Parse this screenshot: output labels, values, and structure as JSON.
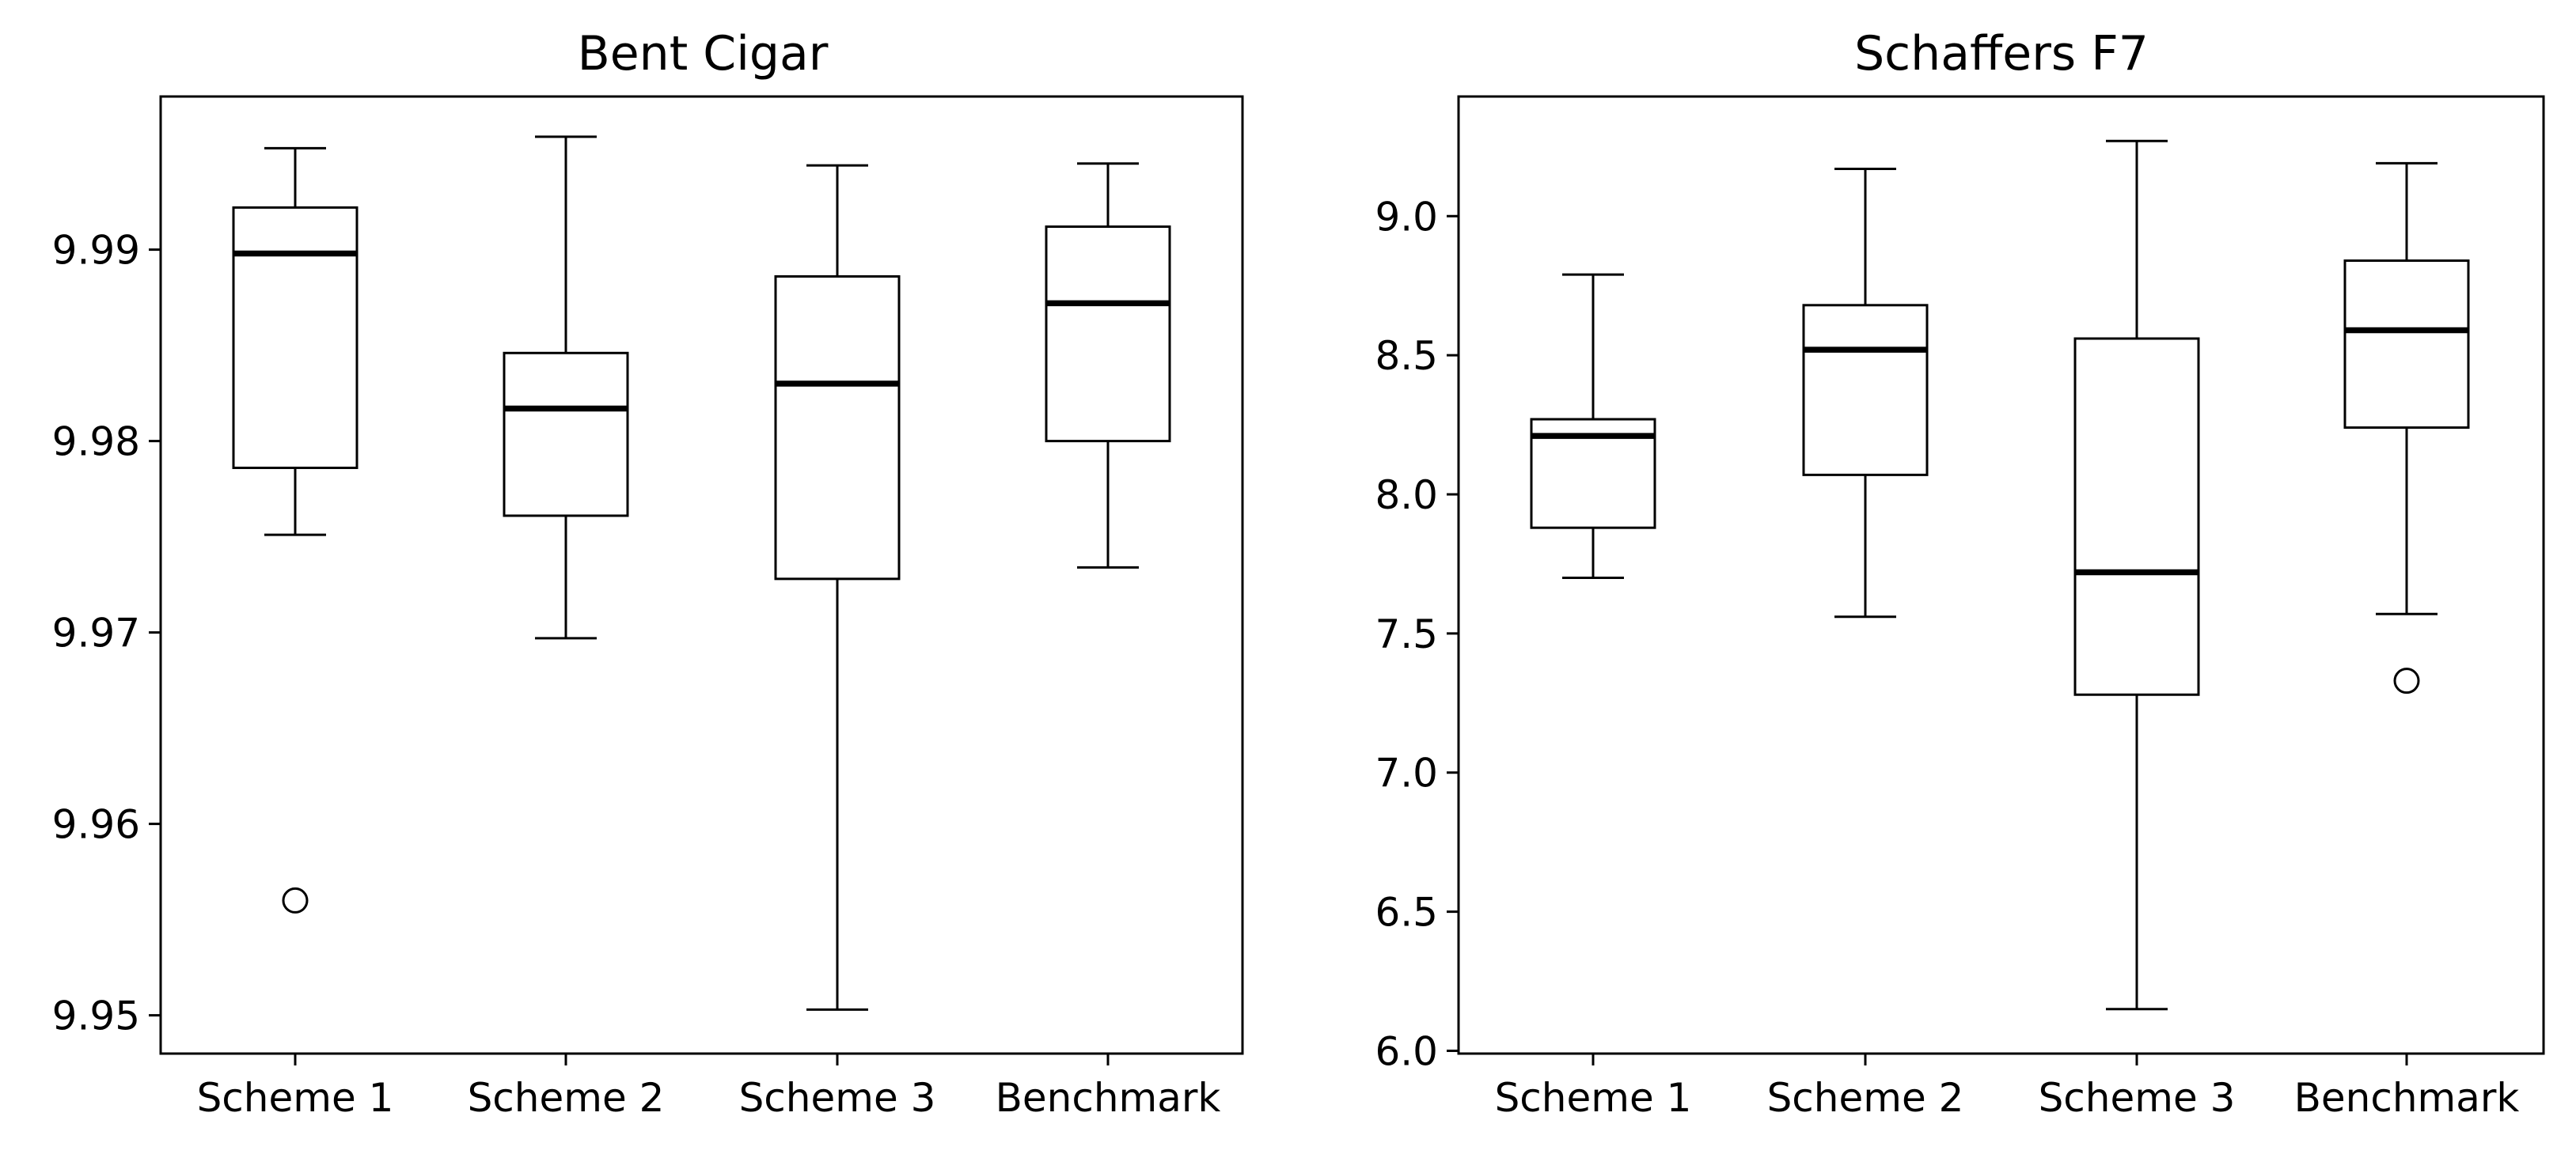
{
  "chart_data": [
    {
      "type": "box",
      "title": "Bent Cigar",
      "xlabel": "",
      "ylabel": "",
      "categories": [
        "Scheme 1",
        "Scheme 2",
        "Scheme 3",
        "Benchmark"
      ],
      "ylim": [
        9.948,
        9.998
      ],
      "yticks": [
        9.95,
        9.96,
        9.97,
        9.98,
        9.99
      ],
      "ytick_labels": [
        "9.95",
        "9.96",
        "9.97",
        "9.98",
        "9.99"
      ],
      "boxes": [
        {
          "whislo": 9.9751,
          "q1": 9.9786,
          "med": 9.9898,
          "q3": 9.9922,
          "whishi": 9.9953,
          "fliers": [
            9.956
          ]
        },
        {
          "whislo": 9.9697,
          "q1": 9.9761,
          "med": 9.9817,
          "q3": 9.9846,
          "whishi": 9.9959,
          "fliers": []
        },
        {
          "whislo": 9.9503,
          "q1": 9.9728,
          "med": 9.983,
          "q3": 9.9886,
          "whishi": 9.9944,
          "fliers": []
        },
        {
          "whislo": 9.9734,
          "q1": 9.98,
          "med": 9.9872,
          "q3": 9.9912,
          "whishi": 9.9945,
          "fliers": []
        }
      ],
      "grid": false,
      "legend": "none"
    },
    {
      "type": "box",
      "title": "Schaffers F7",
      "xlabel": "",
      "ylabel": "",
      "categories": [
        "Scheme 1",
        "Scheme 2",
        "Scheme 3",
        "Benchmark"
      ],
      "ylim": [
        5.99,
        9.43
      ],
      "yticks": [
        6.0,
        6.5,
        7.0,
        7.5,
        8.0,
        8.5,
        9.0
      ],
      "ytick_labels": [
        "6.0",
        "6.5",
        "7.0",
        "7.5",
        "8.0",
        "8.5",
        "9.0"
      ],
      "boxes": [
        {
          "whislo": 7.7,
          "q1": 7.88,
          "med": 8.21,
          "q3": 8.27,
          "whishi": 8.79,
          "fliers": []
        },
        {
          "whislo": 7.56,
          "q1": 8.07,
          "med": 8.52,
          "q3": 8.68,
          "whishi": 9.17,
          "fliers": []
        },
        {
          "whislo": 6.15,
          "q1": 7.28,
          "med": 7.72,
          "q3": 8.56,
          "whishi": 9.27,
          "fliers": []
        },
        {
          "whislo": 7.57,
          "q1": 8.24,
          "med": 8.59,
          "q3": 8.84,
          "whishi": 9.19,
          "fliers": [
            7.33
          ]
        }
      ],
      "grid": false,
      "legend": "none"
    }
  ]
}
